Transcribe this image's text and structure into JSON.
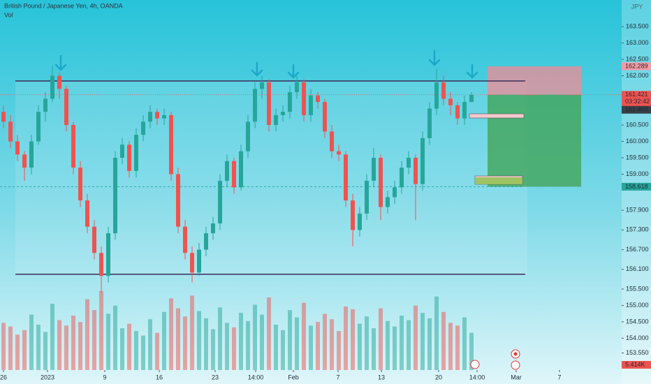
{
  "chart_data": {
    "type": "candlestick",
    "title": "British Pound / Japanese Yen, 4h, OANDA",
    "currency": "JPY",
    "up_color": "#26a69a",
    "down_color": "#ef5350",
    "xlim": [
      -0.5,
      88.5
    ],
    "xticks": [
      {
        "value": 0,
        "label": "26"
      },
      {
        "value": 6.3,
        "label": "2023"
      },
      {
        "value": 14.5,
        "label": "9"
      },
      {
        "value": 22.3,
        "label": "16"
      },
      {
        "value": 30.3,
        "label": "23"
      },
      {
        "value": 36.1,
        "label": "14:00"
      },
      {
        "value": 41.5,
        "label": "Feb"
      },
      {
        "value": 47.9,
        "label": "7"
      },
      {
        "value": 54.1,
        "label": "13"
      },
      {
        "value": 62.3,
        "label": "20"
      },
      {
        "value": 67.8,
        "label": "14:00"
      },
      {
        "value": 73.4,
        "label": "Mar"
      },
      {
        "value": 79.6,
        "label": "7"
      }
    ],
    "ylim": [
      153.03,
      164.31
    ],
    "yticks": [
      {
        "value": 163.5,
        "label": "163.500"
      },
      {
        "value": 163.0,
        "label": "163.000"
      },
      {
        "value": 162.5,
        "label": "162.500"
      },
      {
        "value": 162.0,
        "label": "162.000"
      },
      {
        "value": 160.5,
        "label": "160.500"
      },
      {
        "value": 160.0,
        "label": "160.000"
      },
      {
        "value": 159.5,
        "label": "159.500"
      },
      {
        "value": 159.0,
        "label": "159.000"
      },
      {
        "value": 157.9,
        "label": "157.900"
      },
      {
        "value": 157.3,
        "label": "157.300"
      },
      {
        "value": 156.7,
        "label": "156.700"
      },
      {
        "value": 156.1,
        "label": "156.100"
      },
      {
        "value": 155.5,
        "label": "155.500"
      },
      {
        "value": 155.0,
        "label": "155.000"
      },
      {
        "value": 154.5,
        "label": "154.500"
      },
      {
        "value": 154.0,
        "label": "154.000"
      },
      {
        "value": 153.55,
        "label": "153.550"
      }
    ],
    "open": [
      160.9,
      160.6,
      160.0,
      159.6,
      159.2,
      160.0,
      160.9,
      161.3,
      162.0,
      161.6,
      160.5,
      159.2,
      158.2,
      157.4,
      156.6,
      155.9,
      157.2,
      159.5,
      159.9,
      159.1,
      160.2,
      160.6,
      160.9,
      160.7,
      160.8,
      159.0,
      157.4,
      156.6,
      156.0,
      156.7,
      157.2,
      157.5,
      158.8,
      159.4,
      158.6,
      159.7,
      160.6,
      161.6,
      161.8,
      160.5,
      160.8,
      160.9,
      161.5,
      161.8,
      160.8,
      161.4,
      161.2,
      160.3,
      159.7,
      159.6,
      158.2,
      157.3,
      157.8,
      158.8,
      159.5,
      158.0,
      158.3,
      158.6,
      159.2,
      159.5,
      158.7,
      160.1,
      161.0,
      161.8,
      161.3,
      161.1,
      160.7,
      161.2
    ],
    "high": [
      161.1,
      160.8,
      160.2,
      159.7,
      160.2,
      161.1,
      161.5,
      162.3,
      162.1,
      161.7,
      160.6,
      159.4,
      158.4,
      157.6,
      156.8,
      157.4,
      159.7,
      160.1,
      160.0,
      160.4,
      160.8,
      161.1,
      161.0,
      161.0,
      160.9,
      159.2,
      157.6,
      156.8,
      156.9,
      157.4,
      157.7,
      159.0,
      159.6,
      159.5,
      159.9,
      160.8,
      161.8,
      162.0,
      161.9,
      161.0,
      161.1,
      161.7,
      162.0,
      161.9,
      161.6,
      161.5,
      161.3,
      160.5,
      159.9,
      159.7,
      158.4,
      158.0,
      159.0,
      159.8,
      159.6,
      158.5,
      158.8,
      159.4,
      159.7,
      159.6,
      160.3,
      161.2,
      162.2,
      162.0,
      161.5,
      161.2,
      161.4,
      161.5
    ],
    "low": [
      160.4,
      159.8,
      159.4,
      158.8,
      159.0,
      159.9,
      160.6,
      161.2,
      161.3,
      160.3,
      159.0,
      158.0,
      157.2,
      156.4,
      155.4,
      155.7,
      157.0,
      159.3,
      158.9,
      158.9,
      160.0,
      160.4,
      160.5,
      160.5,
      158.8,
      157.2,
      156.4,
      155.7,
      155.9,
      156.5,
      157.0,
      157.3,
      158.6,
      158.4,
      158.5,
      159.5,
      160.4,
      161.3,
      160.3,
      160.3,
      160.6,
      160.7,
      161.3,
      160.6,
      160.6,
      161.0,
      160.1,
      159.5,
      159.4,
      158.0,
      156.8,
      157.1,
      157.6,
      158.6,
      157.6,
      157.8,
      158.1,
      158.4,
      159.0,
      157.6,
      158.5,
      159.9,
      160.8,
      161.1,
      160.8,
      160.5,
      160.5,
      161.2
    ],
    "close": [
      160.6,
      160.0,
      159.6,
      159.2,
      160.0,
      160.9,
      161.3,
      162.0,
      161.6,
      160.5,
      159.2,
      158.2,
      157.4,
      156.6,
      155.9,
      157.2,
      159.5,
      159.9,
      159.1,
      160.2,
      160.6,
      160.9,
      160.7,
      160.8,
      159.0,
      157.4,
      156.6,
      156.0,
      156.7,
      157.2,
      157.5,
      158.8,
      159.4,
      158.6,
      159.7,
      160.6,
      161.6,
      161.8,
      160.5,
      160.8,
      160.9,
      161.5,
      161.8,
      160.8,
      161.4,
      161.2,
      160.3,
      159.7,
      159.6,
      158.2,
      157.3,
      157.8,
      158.8,
      159.5,
      158.0,
      158.3,
      158.6,
      159.2,
      159.5,
      158.7,
      160.1,
      161.0,
      161.8,
      161.3,
      161.1,
      160.7,
      161.2,
      161.42
    ],
    "volume": {
      "name": "Vol",
      "vlim": [
        0,
        10
      ],
      "values": [
        5.2,
        4.8,
        3.9,
        4.4,
        6.1,
        5.0,
        4.2,
        7.3,
        5.5,
        4.9,
        6.0,
        5.3,
        7.8,
        6.6,
        8.7,
        6.2,
        7.1,
        4.6,
        5.1,
        4.3,
        3.8,
        5.6,
        4.1,
        6.4,
        7.9,
        6.8,
        5.9,
        8.2,
        6.5,
        5.7,
        4.5,
        6.9,
        5.2,
        4.7,
        6.3,
        5.4,
        7.2,
        6.1,
        8.0,
        5.0,
        4.4,
        6.6,
        5.8,
        7.4,
        4.9,
        5.3,
        6.2,
        5.6,
        4.3,
        7.0,
        6.7,
        5.1,
        5.9,
        4.6,
        6.8,
        5.4,
        4.8,
        6.0,
        5.5,
        7.1,
        6.3,
        5.7,
        8.1,
        6.4,
        5.2,
        4.9,
        5.8,
        4.1
      ],
      "last_label": "5.414K"
    },
    "resistance": 161.84,
    "support": 155.95,
    "stop_price": {
      "value": 162.289,
      "label": "162.289"
    },
    "entry_price": {
      "value": 161.421,
      "label": "161.421"
    },
    "countdown": "03:32:42",
    "bid_price": {
      "value": 161.403,
      "label": "161.403"
    },
    "target_price": {
      "value": 158.618,
      "label": "158.618"
    }
  }
}
